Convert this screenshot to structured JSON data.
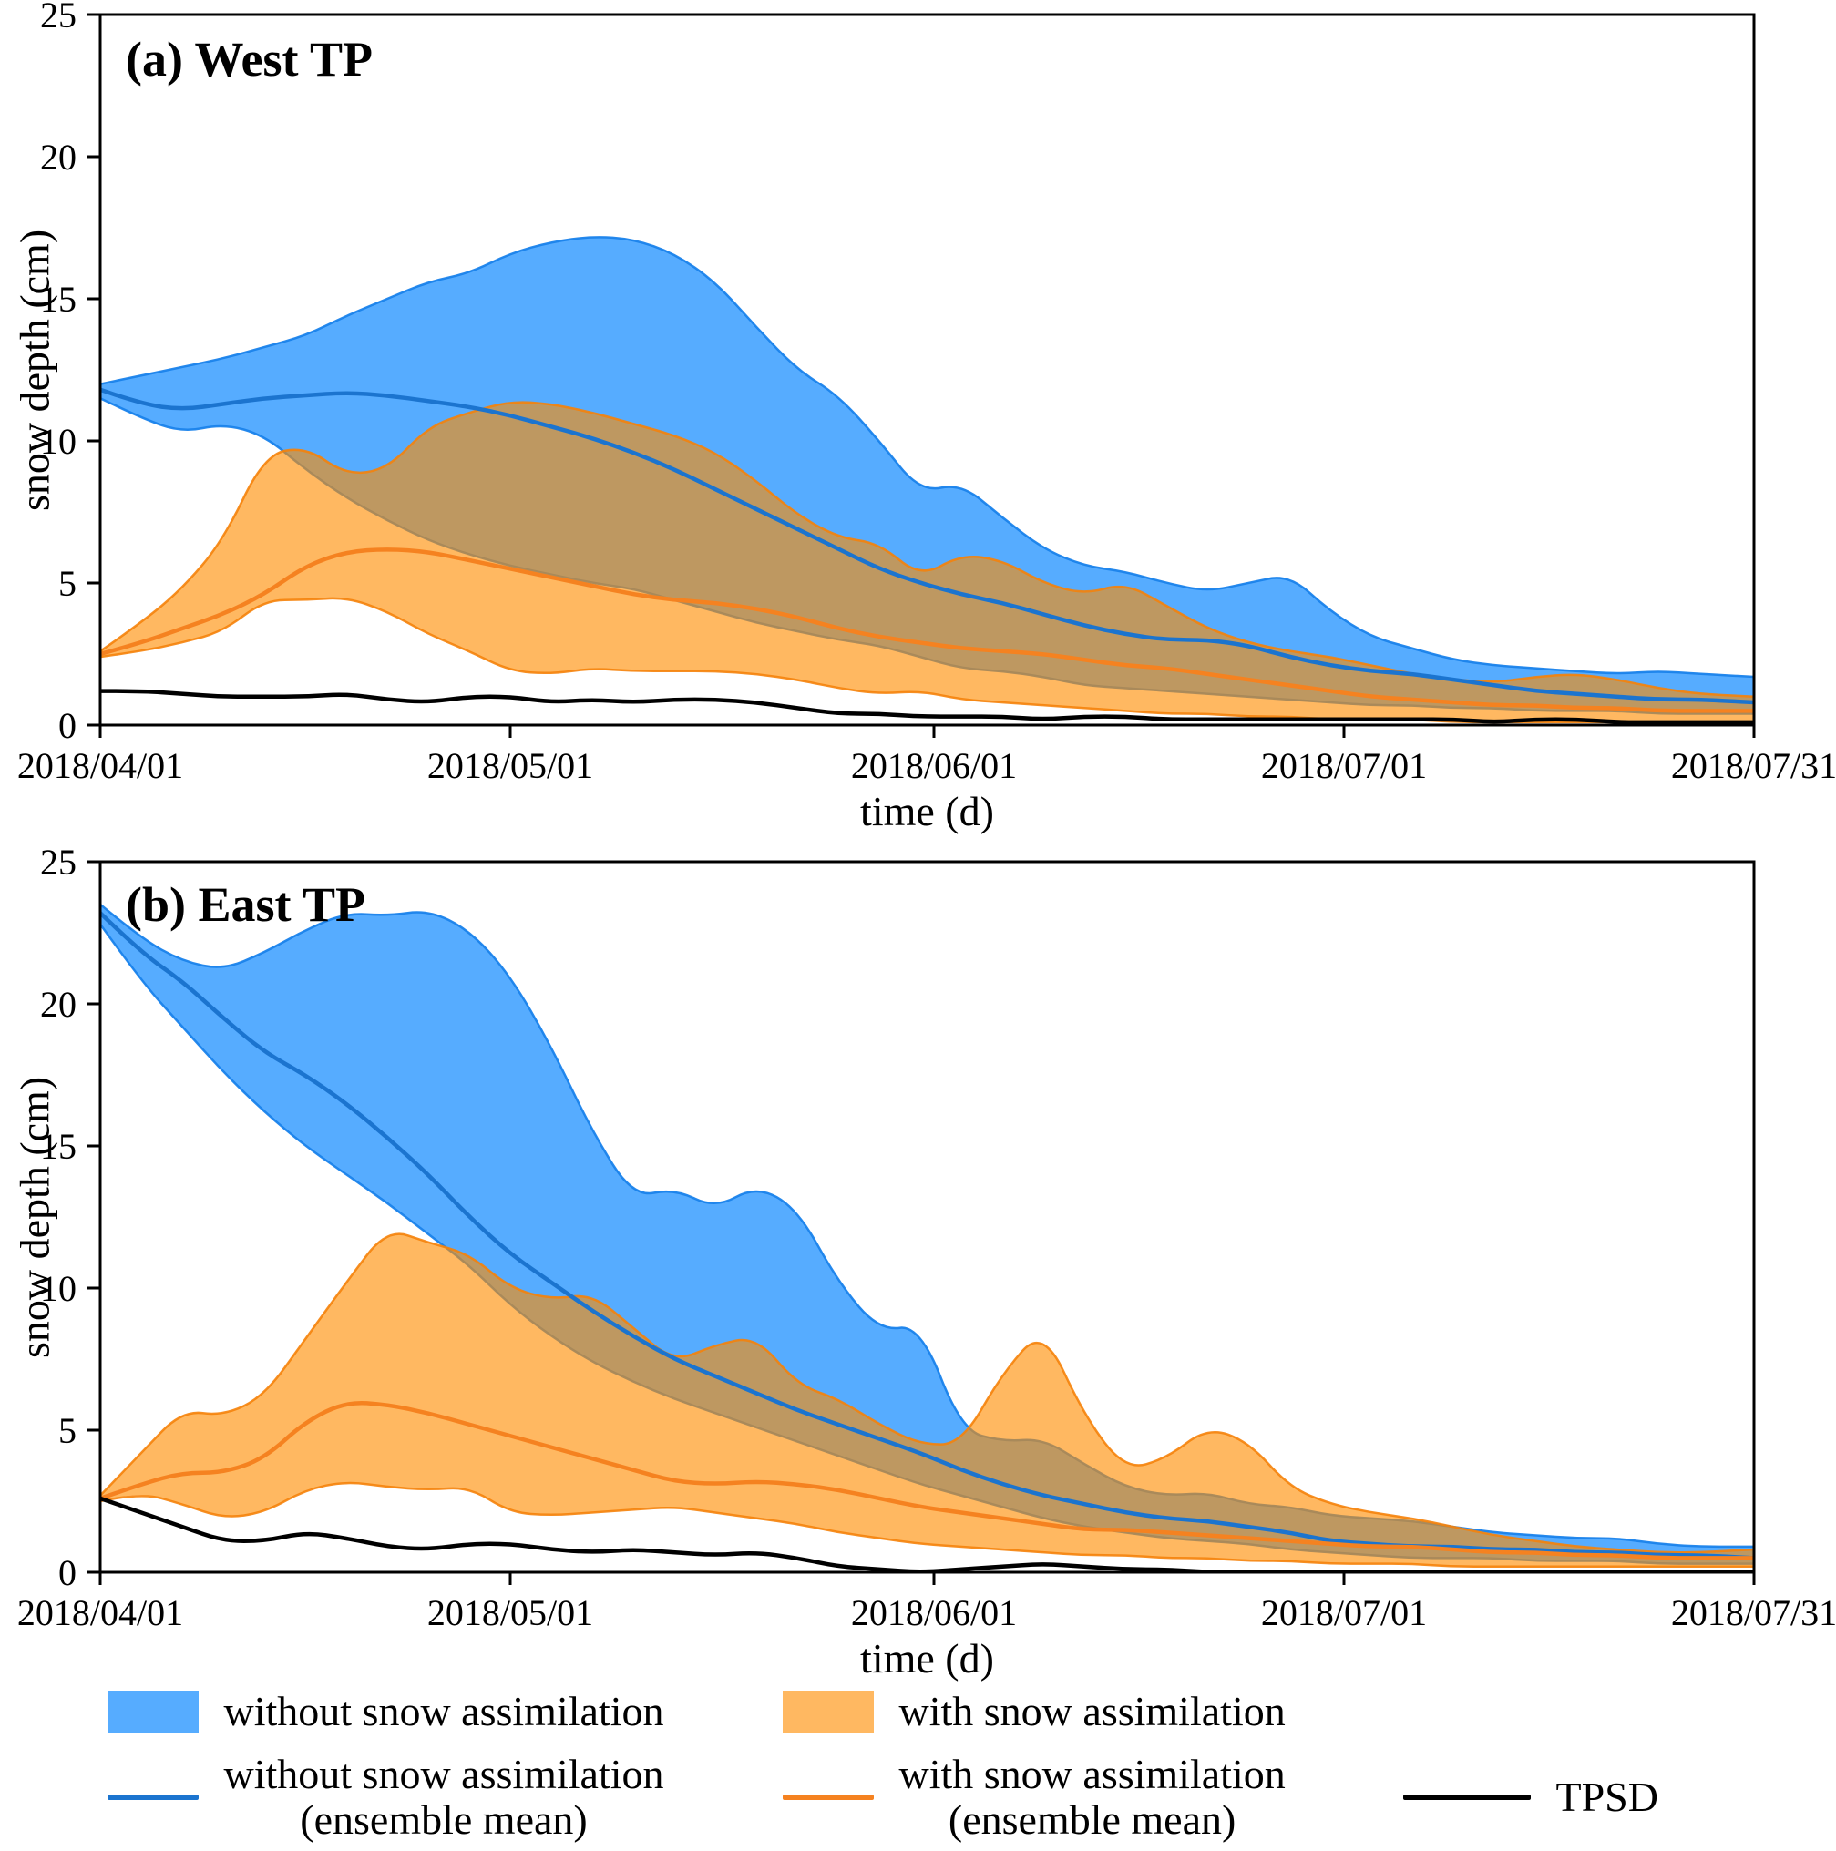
{
  "figure": {
    "y_max": 25,
    "x_max_day": 121,
    "y_ticks": [
      0,
      5,
      10,
      15,
      20,
      25
    ],
    "x_tick_days": [
      0,
      30,
      61,
      91,
      121
    ],
    "x_tick_labels": [
      "2018/04/01",
      "2018/05/01",
      "2018/06/01",
      "2018/07/01",
      "2018/07/31"
    ]
  },
  "colors": {
    "blue_band_fill": "rgba(30,144,255,0.75)",
    "blue_band_edge": "rgba(25,130,235,0.95)",
    "orange_band_fill": "rgba(255,140,0,0.62)",
    "orange_band_edge": "rgba(245,130,10,0.9)",
    "blue_line": "#1b74cf",
    "orange_line": "#f58220",
    "black_line": "#000000",
    "frame": "#000000"
  },
  "legend": {
    "rows": [
      {
        "items": [
          {
            "swatch": "patch",
            "color_key": "blue_band_fill",
            "label": "without snow assimilation"
          },
          {
            "swatch": "patch",
            "color_key": "orange_band_fill",
            "label": "with snow assimilation"
          }
        ]
      },
      {
        "items": [
          {
            "swatch": "line",
            "color_key": "blue_line",
            "label": "without snow assimilation",
            "sublabel": "(ensemble mean)"
          },
          {
            "swatch": "line",
            "color_key": "orange_line",
            "label": "with snow assimilation",
            "sublabel": "(ensemble mean)"
          },
          {
            "swatch": "line",
            "color_key": "black_line",
            "label": "TPSD"
          }
        ]
      }
    ]
  },
  "chart_data": [
    {
      "type": "area",
      "panel": "a",
      "title": "(a) West TP",
      "xlabel": "time (d)",
      "ylabel": "snow depth (cm)",
      "xlim": [
        "2018/04/01",
        "2018/07/31"
      ],
      "ylim": [
        0,
        25
      ],
      "x_days": [
        0,
        3,
        6,
        9,
        12,
        15,
        18,
        21,
        24,
        27,
        30,
        33,
        36,
        39,
        42,
        45,
        48,
        51,
        54,
        57,
        60,
        63,
        66,
        69,
        72,
        75,
        78,
        81,
        84,
        87,
        90,
        93,
        96,
        99,
        102,
        105,
        108,
        111,
        114,
        117,
        121
      ],
      "series": [
        {
          "name": "without snow assimilation (ensemble range)",
          "kind": "band",
          "color_key": "blue_band",
          "upper": [
            12.0,
            12.3,
            12.6,
            12.9,
            13.3,
            13.7,
            14.4,
            15.0,
            15.6,
            15.9,
            16.6,
            17.0,
            17.2,
            17.1,
            16.6,
            15.6,
            14.0,
            12.5,
            11.6,
            10.0,
            8.2,
            8.5,
            7.3,
            6.2,
            5.6,
            5.4,
            5.0,
            4.7,
            5.0,
            5.3,
            4.0,
            3.1,
            2.7,
            2.3,
            2.1,
            2.0,
            1.9,
            1.8,
            1.9,
            1.8,
            1.7
          ],
          "lower": [
            11.5,
            10.8,
            10.3,
            10.6,
            10.2,
            9.0,
            8.0,
            7.2,
            6.5,
            6.0,
            5.6,
            5.3,
            5.0,
            4.8,
            4.4,
            4.0,
            3.6,
            3.3,
            3.0,
            2.8,
            2.4,
            2.0,
            1.9,
            1.7,
            1.4,
            1.3,
            1.2,
            1.1,
            1.0,
            0.9,
            0.8,
            0.7,
            0.7,
            0.6,
            0.6,
            0.5,
            0.5,
            0.5,
            0.4,
            0.4,
            0.4
          ]
        },
        {
          "name": "with snow assimilation (ensemble range)",
          "kind": "band",
          "color_key": "orange_band",
          "upper": [
            2.6,
            3.6,
            4.8,
            6.5,
            9.5,
            9.8,
            8.8,
            9.0,
            10.5,
            11.0,
            11.4,
            11.3,
            11.0,
            10.6,
            10.2,
            9.6,
            8.6,
            7.4,
            6.6,
            6.4,
            5.2,
            6.0,
            5.8,
            5.0,
            4.6,
            5.0,
            4.2,
            3.4,
            2.9,
            2.6,
            2.4,
            2.1,
            1.8,
            1.6,
            1.5,
            1.7,
            1.8,
            1.6,
            1.3,
            1.1,
            1.0
          ],
          "lower": [
            2.4,
            2.6,
            2.9,
            3.3,
            4.4,
            4.4,
            4.5,
            4.0,
            3.2,
            2.6,
            1.9,
            1.8,
            2.0,
            1.9,
            1.9,
            1.9,
            1.8,
            1.6,
            1.3,
            1.1,
            1.2,
            0.9,
            0.8,
            0.7,
            0.6,
            0.5,
            0.4,
            0.4,
            0.3,
            0.3,
            0.2,
            0.2,
            0.2,
            0.1,
            0.1,
            0.1,
            0.1,
            0.1,
            0.1,
            0.1,
            0.1
          ]
        },
        {
          "name": "without snow assimilation (ensemble mean)",
          "kind": "line",
          "color_key": "blue_line",
          "values": [
            11.8,
            11.3,
            11.1,
            11.3,
            11.5,
            11.6,
            11.7,
            11.6,
            11.4,
            11.2,
            10.9,
            10.5,
            10.1,
            9.6,
            9.0,
            8.3,
            7.6,
            6.9,
            6.2,
            5.5,
            5.0,
            4.6,
            4.3,
            3.9,
            3.5,
            3.2,
            3.0,
            3.0,
            2.8,
            2.4,
            2.1,
            1.9,
            1.8,
            1.6,
            1.4,
            1.2,
            1.1,
            1.0,
            0.9,
            0.9,
            0.8
          ]
        },
        {
          "name": "with snow assimilation (ensemble mean)",
          "kind": "line",
          "color_key": "orange_line",
          "values": [
            2.5,
            2.9,
            3.4,
            3.9,
            4.6,
            5.6,
            6.1,
            6.2,
            6.1,
            5.8,
            5.5,
            5.2,
            4.9,
            4.6,
            4.4,
            4.3,
            4.1,
            3.8,
            3.4,
            3.1,
            2.9,
            2.7,
            2.6,
            2.5,
            2.3,
            2.1,
            2.0,
            1.8,
            1.6,
            1.4,
            1.2,
            1.0,
            0.9,
            0.8,
            0.7,
            0.7,
            0.6,
            0.6,
            0.5,
            0.5,
            0.5
          ]
        },
        {
          "name": "TPSD",
          "kind": "line",
          "color_key": "black_line",
          "values": [
            1.2,
            1.2,
            1.1,
            1.0,
            1.0,
            1.0,
            1.1,
            0.9,
            0.8,
            1.0,
            1.0,
            0.8,
            0.9,
            0.8,
            0.9,
            0.9,
            0.8,
            0.6,
            0.4,
            0.4,
            0.3,
            0.3,
            0.3,
            0.2,
            0.3,
            0.3,
            0.2,
            0.2,
            0.2,
            0.2,
            0.2,
            0.2,
            0.2,
            0.2,
            0.1,
            0.2,
            0.2,
            0.1,
            0.1,
            0.1,
            0.1
          ]
        }
      ]
    },
    {
      "type": "area",
      "panel": "b",
      "title": "(b) East TP",
      "xlabel": "time (d)",
      "ylabel": "snow depth (cm)",
      "xlim": [
        "2018/04/01",
        "2018/07/31"
      ],
      "ylim": [
        0,
        25
      ],
      "x_days": [
        0,
        3,
        6,
        9,
        12,
        15,
        18,
        21,
        24,
        27,
        30,
        33,
        36,
        39,
        42,
        45,
        48,
        51,
        54,
        57,
        60,
        63,
        66,
        69,
        72,
        75,
        78,
        81,
        84,
        87,
        90,
        93,
        96,
        99,
        102,
        105,
        108,
        111,
        114,
        117,
        121
      ],
      "series": [
        {
          "name": "without snow assimilation (ensemble range)",
          "kind": "band",
          "color_key": "blue_band",
          "upper": [
            23.5,
            22.3,
            21.5,
            21.2,
            21.8,
            22.6,
            23.2,
            23.1,
            23.3,
            22.6,
            21.0,
            18.5,
            15.5,
            13.2,
            13.5,
            12.8,
            13.6,
            12.8,
            10.2,
            8.5,
            8.7,
            5.0,
            4.6,
            4.7,
            3.8,
            3.0,
            2.7,
            2.8,
            2.4,
            2.3,
            2.0,
            1.9,
            1.8,
            1.6,
            1.4,
            1.3,
            1.2,
            1.2,
            1.0,
            0.9,
            0.9
          ],
          "lower": [
            22.8,
            20.8,
            19.2,
            17.6,
            16.2,
            15.0,
            14.0,
            13.0,
            11.9,
            10.8,
            9.4,
            8.3,
            7.4,
            6.7,
            6.1,
            5.6,
            5.1,
            4.6,
            4.1,
            3.6,
            3.1,
            2.7,
            2.3,
            1.9,
            1.6,
            1.4,
            1.2,
            1.1,
            1.0,
            0.8,
            0.7,
            0.6,
            0.5,
            0.5,
            0.5,
            0.4,
            0.4,
            0.4,
            0.3,
            0.3,
            0.3
          ]
        },
        {
          "name": "with snow assimilation (ensemble range)",
          "kind": "band",
          "color_key": "orange_band",
          "upper": [
            2.7,
            4.2,
            5.7,
            5.5,
            6.2,
            8.2,
            10.2,
            12.1,
            11.6,
            11.2,
            10.0,
            9.6,
            9.8,
            8.6,
            7.4,
            8.0,
            8.3,
            6.6,
            6.1,
            5.2,
            4.5,
            4.5,
            7.0,
            8.6,
            5.5,
            3.6,
            4.0,
            5.1,
            4.6,
            3.0,
            2.4,
            2.1,
            1.9,
            1.6,
            1.3,
            1.1,
            0.9,
            0.8,
            0.7,
            0.7,
            0.8
          ],
          "lower": [
            2.5,
            2.8,
            2.4,
            1.9,
            2.1,
            2.9,
            3.2,
            3.0,
            2.9,
            3.0,
            2.1,
            2.0,
            2.1,
            2.2,
            2.3,
            2.1,
            1.9,
            1.7,
            1.4,
            1.2,
            1.0,
            0.9,
            0.8,
            0.7,
            0.6,
            0.6,
            0.5,
            0.5,
            0.4,
            0.4,
            0.3,
            0.3,
            0.3,
            0.2,
            0.2,
            0.2,
            0.2,
            0.2,
            0.2,
            0.2,
            0.2
          ]
        },
        {
          "name": "without snow assimilation (ensemble mean)",
          "kind": "line",
          "color_key": "blue_line",
          "values": [
            23.2,
            21.8,
            20.8,
            19.5,
            18.3,
            17.5,
            16.5,
            15.3,
            14.0,
            12.5,
            11.2,
            10.2,
            9.2,
            8.3,
            7.5,
            6.9,
            6.3,
            5.7,
            5.2,
            4.7,
            4.2,
            3.6,
            3.1,
            2.7,
            2.4,
            2.1,
            1.9,
            1.8,
            1.6,
            1.4,
            1.1,
            1.0,
            0.9,
            0.9,
            0.8,
            0.8,
            0.7,
            0.7,
            0.6,
            0.6,
            0.5
          ]
        },
        {
          "name": "with snow assimilation (ensemble mean)",
          "kind": "line",
          "color_key": "orange_line",
          "values": [
            2.6,
            3.1,
            3.5,
            3.5,
            4.0,
            5.3,
            6.0,
            5.9,
            5.6,
            5.2,
            4.8,
            4.4,
            4.0,
            3.6,
            3.2,
            3.1,
            3.2,
            3.1,
            2.9,
            2.6,
            2.3,
            2.1,
            1.9,
            1.7,
            1.5,
            1.5,
            1.4,
            1.3,
            1.2,
            1.1,
            1.0,
            0.9,
            0.9,
            0.8,
            0.7,
            0.7,
            0.6,
            0.6,
            0.5,
            0.5,
            0.5
          ]
        },
        {
          "name": "TPSD",
          "kind": "line",
          "color_key": "black_line",
          "values": [
            2.6,
            2.1,
            1.6,
            1.1,
            1.1,
            1.4,
            1.2,
            0.9,
            0.8,
            1.0,
            1.0,
            0.8,
            0.7,
            0.8,
            0.7,
            0.6,
            0.7,
            0.5,
            0.2,
            0.1,
            0.0,
            0.1,
            0.2,
            0.3,
            0.2,
            0.1,
            0.1,
            0.0,
            0.0,
            0.0,
            0.0,
            0.0,
            0.0,
            0.0,
            0.0,
            0.0,
            0.0,
            0.0,
            0.0,
            0.0,
            0.0
          ]
        }
      ]
    }
  ]
}
